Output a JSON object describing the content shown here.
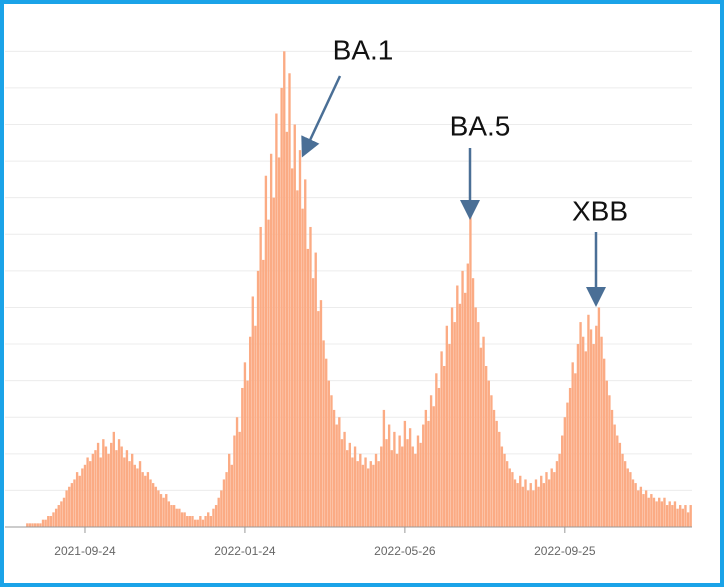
{
  "chart_data": {
    "type": "bar",
    "color": "#fbab84",
    "categories": [
      null,
      null,
      null,
      null,
      null,
      null,
      null,
      null,
      null,
      null,
      null,
      null,
      null,
      null,
      null,
      null,
      null,
      null,
      null,
      null,
      null,
      null,
      null,
      null,
      null,
      null,
      null,
      null,
      null,
      null,
      "2021-09-24",
      null,
      null,
      null,
      null,
      null,
      null,
      null,
      null,
      null,
      null,
      null,
      null,
      null,
      null,
      null,
      null,
      null,
      null,
      null,
      null,
      null,
      null,
      null,
      null,
      null,
      null,
      null,
      null,
      null,
      null,
      null,
      null,
      null,
      null,
      null,
      null,
      null,
      null,
      null,
      null,
      null,
      null,
      null,
      null,
      null,
      null,
      null,
      null,
      null,
      null,
      null,
      null,
      null,
      null,
      null,
      null,
      null,
      null,
      null,
      null,
      "2022-01-24",
      null,
      null,
      null,
      null,
      null,
      null,
      null,
      null,
      null,
      null,
      null,
      null,
      null,
      null,
      null,
      null,
      null,
      null,
      null,
      null,
      null,
      null,
      null,
      null,
      null,
      null,
      null,
      null,
      null,
      null,
      null,
      null,
      null,
      null,
      null,
      null,
      null,
      null,
      null,
      null,
      null,
      null,
      null,
      null,
      null,
      null,
      null,
      null,
      null,
      null,
      null,
      null,
      null,
      null,
      null,
      null,
      null,
      null,
      null,
      null,
      "2022-05-26",
      null,
      null,
      null,
      null,
      null,
      null,
      null,
      null,
      null,
      null,
      null,
      null,
      null,
      null,
      null,
      null,
      null,
      null,
      null,
      null,
      null,
      null,
      null,
      null,
      null,
      null,
      null,
      null,
      null,
      null,
      null,
      null,
      null,
      null,
      null,
      null,
      null,
      null,
      null,
      null,
      null,
      null,
      null,
      null,
      null,
      null,
      null,
      null,
      null,
      null,
      null,
      null,
      null,
      null,
      null,
      null,
      null,
      null,
      null,
      null,
      "2022-09-25",
      null,
      null,
      null,
      null,
      null,
      null,
      null,
      null,
      null,
      null,
      null,
      null,
      null,
      null,
      null,
      null,
      null,
      null,
      null,
      null,
      null,
      null,
      null,
      null,
      null,
      null,
      null,
      null,
      null,
      null,
      null,
      null,
      null,
      null,
      null,
      null,
      null,
      null,
      null,
      null,
      null,
      null,
      null,
      null,
      null,
      null,
      null,
      null
    ],
    "values": [
      0,
      0,
      0,
      0,
      0,
      0,
      0,
      0,
      0.1,
      0.1,
      0.1,
      0.1,
      0.1,
      0.1,
      0.2,
      0.2,
      0.3,
      0.3,
      0.4,
      0.5,
      0.6,
      0.7,
      0.8,
      1.0,
      1.1,
      1.2,
      1.3,
      1.5,
      1.4,
      1.6,
      1.7,
      1.9,
      1.8,
      2.0,
      2.1,
      2.3,
      1.9,
      2.4,
      2.2,
      2.0,
      2.3,
      2.6,
      2.1,
      2.4,
      2.2,
      1.9,
      2.1,
      1.8,
      2.0,
      1.7,
      1.6,
      1.8,
      1.5,
      1.4,
      1.5,
      1.3,
      1.2,
      1.1,
      1.0,
      0.9,
      0.8,
      0.9,
      0.7,
      0.6,
      0.6,
      0.5,
      0.5,
      0.4,
      0.4,
      0.3,
      0.3,
      0.3,
      0.2,
      0.2,
      0.3,
      0.2,
      0.3,
      0.4,
      0.3,
      0.5,
      0.6,
      0.8,
      1.0,
      1.3,
      1.5,
      2.0,
      1.7,
      2.5,
      3.0,
      2.6,
      3.8,
      4.5,
      4.0,
      5.2,
      6.3,
      5.5,
      7.0,
      8.2,
      7.3,
      9.6,
      8.4,
      10.2,
      9.0,
      11.3,
      10.1,
      12.0,
      13.0,
      10.8,
      12.4,
      9.8,
      11.0,
      9.2,
      10.3,
      8.7,
      9.5,
      7.6,
      8.2,
      6.8,
      7.5,
      5.9,
      6.2,
      5.1,
      4.6,
      4.0,
      3.6,
      3.2,
      2.8,
      3.0,
      2.4,
      2.6,
      2.1,
      2.3,
      1.9,
      2.2,
      1.8,
      2.0,
      1.7,
      1.9,
      1.6,
      1.8,
      1.7,
      2.0,
      1.8,
      2.2,
      3.2,
      2.4,
      2.8,
      2.1,
      2.6,
      2.0,
      2.5,
      2.2,
      2.9,
      2.4,
      2.7,
      2.2,
      2.0,
      2.5,
      2.3,
      2.8,
      3.2,
      2.9,
      3.6,
      3.3,
      4.2,
      3.8,
      4.8,
      4.4,
      5.5,
      5.0,
      6.0,
      5.6,
      6.6,
      6.1,
      7.0,
      6.4,
      7.2,
      8.5,
      6.8,
      6.0,
      5.6,
      4.9,
      5.2,
      4.4,
      4.0,
      3.6,
      3.2,
      2.9,
      2.6,
      2.2,
      2.0,
      1.8,
      1.6,
      1.5,
      1.3,
      1.2,
      1.4,
      1.1,
      1.3,
      1.0,
      1.2,
      1.0,
      1.3,
      1.1,
      1.4,
      1.2,
      1.5,
      1.3,
      1.6,
      1.5,
      1.8,
      2.0,
      2.5,
      3.0,
      3.4,
      3.8,
      4.5,
      4.2,
      5.0,
      5.6,
      5.2,
      4.8,
      5.8,
      5.4,
      5.0,
      5.5,
      6.0,
      5.2,
      4.6,
      4.0,
      3.6,
      3.2,
      2.8,
      2.5,
      2.3,
      2.0,
      1.8,
      1.6,
      1.5,
      1.3,
      1.2,
      1.0,
      1.1,
      0.9,
      1.0,
      0.8,
      0.9,
      0.8,
      0.7,
      0.8,
      0.7,
      0.8,
      0.6,
      0.7,
      0.6,
      0.7,
      0.5,
      0.6,
      0.5,
      0.6,
      0.4,
      0.6
    ],
    "ylim": [
      0,
      13.2
    ],
    "yticks": [
      0,
      1,
      2,
      3,
      4,
      5,
      6,
      7,
      8,
      9,
      10,
      11,
      12,
      13
    ],
    "grid": true,
    "annotations": [
      {
        "text": "BA.1"
      },
      {
        "text": "BA.5"
      },
      {
        "text": "XBB"
      }
    ]
  }
}
